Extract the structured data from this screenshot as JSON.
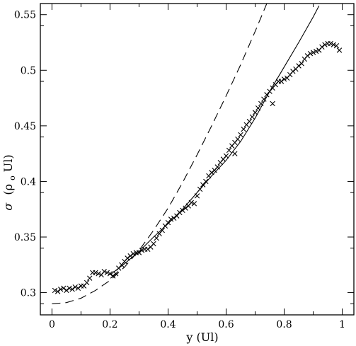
{
  "chart_data": {
    "type": "scatter",
    "title": "",
    "xlabel": "y (Ul)",
    "ylabel_parts": {
      "symbol": "σ",
      "open": "(ρ",
      "sub": "o",
      "close": "Ul)"
    },
    "xlim": [
      -0.04,
      1.04
    ],
    "ylim": [
      0.28,
      0.56
    ],
    "xticks": [
      0,
      0.2,
      0.4,
      0.6,
      0.8,
      1
    ],
    "xtick_labels": [
      "0",
      "0.2",
      "0.4",
      "0.6",
      "0.8",
      "1"
    ],
    "yticks": [
      0.3,
      0.35,
      0.4,
      0.45,
      0.5,
      0.55
    ],
    "ytick_labels": [
      "0.3",
      "0.35",
      "0.4",
      "0.45",
      "0.5",
      "0.55"
    ],
    "grid": false,
    "series": [
      {
        "style": "markers-x",
        "x": [
          0.01,
          0.02,
          0.03,
          0.04,
          0.05,
          0.06,
          0.07,
          0.08,
          0.09,
          0.1,
          0.11,
          0.12,
          0.13,
          0.14,
          0.15,
          0.16,
          0.17,
          0.18,
          0.19,
          0.2,
          0.21,
          0.22,
          0.23,
          0.24,
          0.25,
          0.26,
          0.27,
          0.28,
          0.29,
          0.3,
          0.31,
          0.32,
          0.33,
          0.34,
          0.35,
          0.36,
          0.37,
          0.38,
          0.39,
          0.4,
          0.41,
          0.42,
          0.43,
          0.44,
          0.45,
          0.46,
          0.47,
          0.48,
          0.49,
          0.5,
          0.51,
          0.52,
          0.53,
          0.54,
          0.55,
          0.56,
          0.57,
          0.58,
          0.59,
          0.6,
          0.61,
          0.62,
          0.63,
          0.64,
          0.65,
          0.66,
          0.67,
          0.68,
          0.69,
          0.7,
          0.71,
          0.72,
          0.73,
          0.74,
          0.75,
          0.76,
          0.77,
          0.78,
          0.79,
          0.8,
          0.81,
          0.82,
          0.83,
          0.84,
          0.85,
          0.86,
          0.87,
          0.88,
          0.89,
          0.9,
          0.91,
          0.92,
          0.93,
          0.94,
          0.95,
          0.96,
          0.97,
          0.98,
          0.99,
          0.76,
          0.63
        ],
        "y": [
          0.302,
          0.301,
          0.303,
          0.304,
          0.302,
          0.304,
          0.303,
          0.305,
          0.304,
          0.306,
          0.306,
          0.309,
          0.313,
          0.318,
          0.318,
          0.317,
          0.316,
          0.319,
          0.318,
          0.317,
          0.315,
          0.317,
          0.322,
          0.325,
          0.328,
          0.331,
          0.333,
          0.335,
          0.336,
          0.336,
          0.338,
          0.339,
          0.339,
          0.341,
          0.344,
          0.349,
          0.353,
          0.356,
          0.36,
          0.363,
          0.366,
          0.367,
          0.369,
          0.372,
          0.374,
          0.376,
          0.378,
          0.381,
          0.38,
          0.387,
          0.393,
          0.397,
          0.4,
          0.405,
          0.408,
          0.41,
          0.413,
          0.417,
          0.42,
          0.423,
          0.428,
          0.432,
          0.435,
          0.438,
          0.442,
          0.447,
          0.451,
          0.454,
          0.458,
          0.462,
          0.466,
          0.47,
          0.474,
          0.478,
          0.481,
          0.484,
          0.487,
          0.49,
          0.49,
          0.492,
          0.493,
          0.496,
          0.499,
          0.501,
          0.504,
          0.506,
          0.51,
          0.513,
          0.515,
          0.516,
          0.517,
          0.518,
          0.521,
          0.523,
          0.524,
          0.524,
          0.523,
          0.522,
          0.518,
          0.47,
          0.425
        ]
      },
      {
        "style": "solid",
        "x": [
          0.2,
          0.25,
          0.3,
          0.35,
          0.4,
          0.45,
          0.5,
          0.55,
          0.6,
          0.65,
          0.7,
          0.75,
          0.8,
          0.85,
          0.9,
          0.92
        ],
        "y": [
          0.316,
          0.326,
          0.337,
          0.35,
          0.362,
          0.375,
          0.39,
          0.405,
          0.419,
          0.436,
          0.457,
          0.481,
          0.503,
          0.525,
          0.548,
          0.558
        ]
      },
      {
        "style": "dashed",
        "x": [
          0,
          0.05,
          0.1,
          0.15,
          0.2,
          0.25,
          0.3,
          0.35,
          0.4,
          0.45,
          0.5,
          0.55,
          0.6,
          0.65,
          0.7,
          0.74
        ],
        "y": [
          0.29,
          0.291,
          0.295,
          0.302,
          0.311,
          0.323,
          0.338,
          0.356,
          0.376,
          0.399,
          0.424,
          0.45,
          0.477,
          0.505,
          0.535,
          0.56
        ]
      }
    ]
  }
}
